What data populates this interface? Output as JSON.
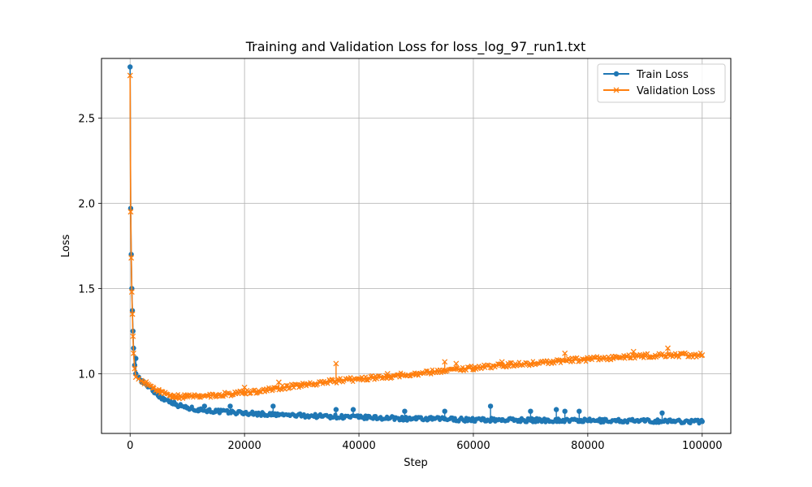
{
  "chart_data": {
    "type": "line",
    "title": "Training and Validation Loss for loss_log_97_run1.txt",
    "xlabel": "Step",
    "ylabel": "Loss",
    "xlim": [
      -5000,
      105000
    ],
    "ylim": [
      0.65,
      2.85
    ],
    "xticks": [
      0,
      20000,
      40000,
      60000,
      80000,
      100000
    ],
    "xtick_labels": [
      "0",
      "20000",
      "40000",
      "60000",
      "80000",
      "100000"
    ],
    "yticks": [
      1.0,
      1.5,
      2.0,
      2.5
    ],
    "ytick_labels": [
      "1.0",
      "1.5",
      "2.0",
      "2.5"
    ],
    "grid": true,
    "legend_position": "top-right",
    "colors": {
      "train": "#1f77b4",
      "validation": "#ff7f0e",
      "grid": "#b0b0b0",
      "axis": "#000000"
    },
    "series": [
      {
        "name": "Train Loss",
        "marker": "circle",
        "x": [
          0,
          100,
          200,
          300,
          400,
          500,
          600,
          800,
          1000,
          1500,
          2000,
          3000,
          4000,
          5000,
          6000,
          7000,
          8000,
          10000,
          12000,
          15000,
          20000,
          25000,
          30000,
          35000,
          40000,
          45000,
          50000,
          55000,
          60000,
          65000,
          70000,
          75000,
          80000,
          85000,
          90000,
          95000,
          100000
        ],
        "values": [
          2.8,
          1.97,
          1.7,
          1.5,
          1.37,
          1.25,
          1.15,
          1.05,
          1.0,
          0.98,
          0.96,
          0.93,
          0.9,
          0.87,
          0.85,
          0.84,
          0.82,
          0.8,
          0.79,
          0.78,
          0.77,
          0.76,
          0.755,
          0.75,
          0.745,
          0.74,
          0.735,
          0.735,
          0.73,
          0.73,
          0.728,
          0.727,
          0.725,
          0.725,
          0.723,
          0.722,
          0.72
        ],
        "spikes_x": [
          1000,
          13000,
          17500,
          25000,
          36000,
          39000,
          48000,
          55000,
          63000,
          70000,
          74500,
          76000,
          78500,
          93000
        ],
        "spikes_values": [
          1.09,
          0.81,
          0.81,
          0.81,
          0.79,
          0.79,
          0.78,
          0.78,
          0.81,
          0.78,
          0.79,
          0.78,
          0.78,
          0.77
        ]
      },
      {
        "name": "Validation Loss",
        "marker": "x",
        "x": [
          0,
          100,
          200,
          300,
          400,
          500,
          600,
          800,
          1000,
          1500,
          2000,
          3000,
          4000,
          5000,
          6000,
          7000,
          8000,
          9000,
          10000,
          12000,
          15000,
          20000,
          25000,
          30000,
          35000,
          40000,
          45000,
          50000,
          55000,
          60000,
          65000,
          70000,
          75000,
          80000,
          85000,
          90000,
          95000,
          100000
        ],
        "values": [
          2.75,
          1.95,
          1.68,
          1.48,
          1.35,
          1.22,
          1.12,
          1.03,
          0.98,
          0.97,
          0.96,
          0.94,
          0.92,
          0.9,
          0.885,
          0.875,
          0.87,
          0.865,
          0.865,
          0.87,
          0.875,
          0.89,
          0.91,
          0.935,
          0.955,
          0.97,
          0.985,
          1.0,
          1.02,
          1.035,
          1.05,
          1.06,
          1.075,
          1.085,
          1.095,
          1.105,
          1.11,
          1.11
        ],
        "spikes_x": [
          20000,
          26000,
          36000,
          45000,
          55000,
          57000,
          65000,
          76000,
          88000,
          94000
        ],
        "spikes_values": [
          0.92,
          0.95,
          1.06,
          1.0,
          1.07,
          1.06,
          1.07,
          1.12,
          1.13,
          1.15
        ]
      }
    ]
  }
}
